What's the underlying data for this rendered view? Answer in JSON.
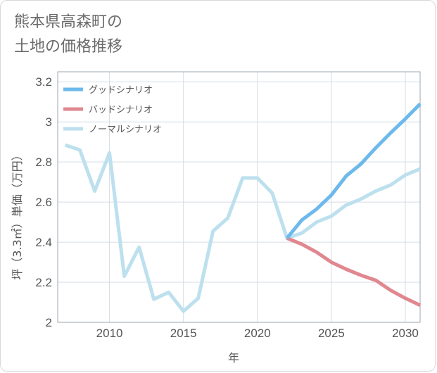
{
  "title_lines": [
    "熊本県高森町の",
    "土地の価格推移"
  ],
  "chart_data": {
    "type": "line",
    "xlabel": "年",
    "ylabel": "坪（3.3㎡）単価（万円）",
    "xlim": [
      2006.5,
      2031
    ],
    "ylim": [
      2,
      3.25
    ],
    "x_ticks": [
      2010,
      2015,
      2020,
      2025,
      2030
    ],
    "y_ticks": [
      2,
      2.2,
      2.4,
      2.6,
      2.8,
      3,
      3.2
    ],
    "y_tick_labels": [
      "2",
      "2.2",
      "2.4",
      "2.6",
      "2.8",
      "3",
      "3.2"
    ],
    "grid": true,
    "legend_position": "top-left",
    "series": [
      {
        "name": "グッドシナリオ",
        "color": "#6db9ec",
        "x": [
          2022,
          2023,
          2024,
          2025,
          2026,
          2027,
          2028,
          2029,
          2030,
          2031
        ],
        "y": [
          2.42,
          2.51,
          2.565,
          2.635,
          2.73,
          2.79,
          2.87,
          2.945,
          3.015,
          3.09
        ]
      },
      {
        "name": "バッドシナリオ",
        "color": "#e0878f",
        "x": [
          2022,
          2023,
          2024,
          2025,
          2026,
          2027,
          2028,
          2029,
          2030,
          2031
        ],
        "y": [
          2.42,
          2.39,
          2.35,
          2.3,
          2.265,
          2.235,
          2.21,
          2.16,
          2.12,
          2.085
        ]
      },
      {
        "name": "ノーマルシナリオ",
        "color": "#bde0ee",
        "x": [
          2007,
          2008,
          2009,
          2010,
          2011,
          2012,
          2013,
          2014,
          2015,
          2016,
          2017,
          2018,
          2019,
          2020,
          2021,
          2022,
          2023,
          2024,
          2025,
          2026,
          2027,
          2028,
          2029,
          2030,
          2031
        ],
        "y": [
          2.885,
          2.86,
          2.655,
          2.845,
          2.23,
          2.375,
          2.115,
          2.15,
          2.055,
          2.12,
          2.455,
          2.52,
          2.72,
          2.72,
          2.645,
          2.42,
          2.445,
          2.5,
          2.53,
          2.585,
          2.615,
          2.655,
          2.685,
          2.735,
          2.765
        ]
      }
    ]
  }
}
